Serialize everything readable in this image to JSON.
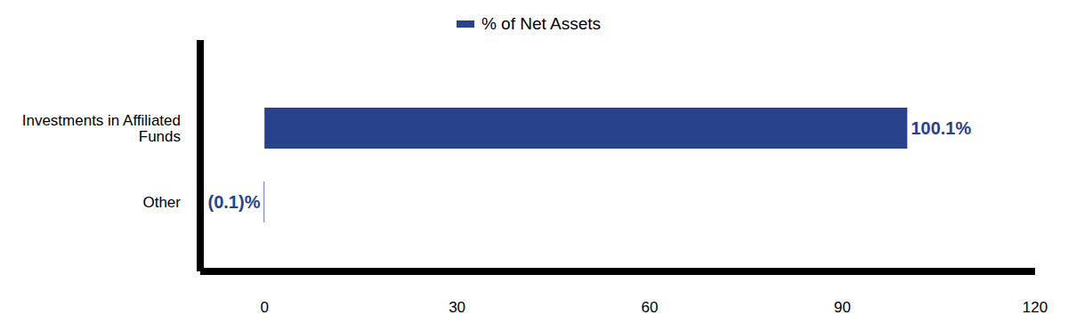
{
  "chart_data": {
    "type": "bar",
    "orientation": "horizontal",
    "categories": [
      "Investments in Affiliated Funds",
      "Other"
    ],
    "series": [
      {
        "name": "% of Net Assets",
        "color": "#28428c",
        "values": [
          100.1,
          -0.1
        ],
        "value_labels": [
          "100.1%",
          "(0.1)%"
        ]
      }
    ],
    "xlim": [
      -10,
      120
    ],
    "xticks": [
      0,
      30,
      60,
      90,
      120
    ],
    "data_labels": true,
    "legend": "top",
    "grid": false
  }
}
